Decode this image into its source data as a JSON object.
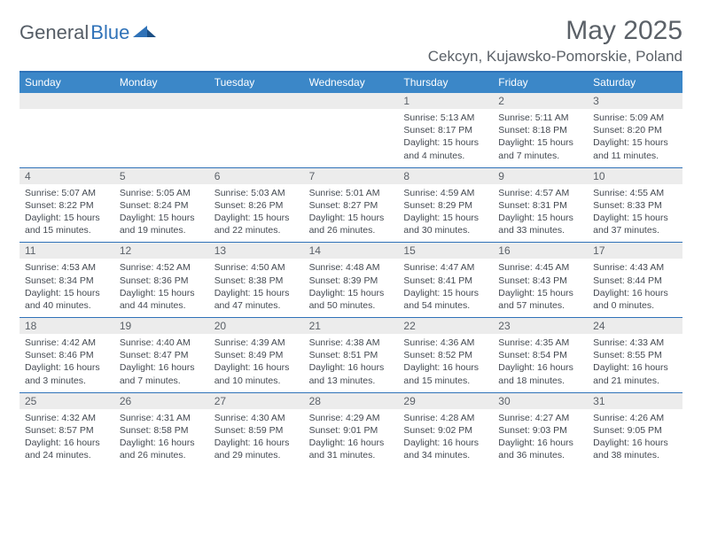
{
  "logo": {
    "text1": "General",
    "text2": "Blue"
  },
  "title": "May 2025",
  "location": "Cekcyn, Kujawsko-Pomorskie, Poland",
  "day_names": [
    "Sunday",
    "Monday",
    "Tuesday",
    "Wednesday",
    "Thursday",
    "Friday",
    "Saturday"
  ],
  "colors": {
    "header_bg": "#3b87c8",
    "border": "#2f72b8",
    "daynum_bg": "#ececec",
    "text_main": "#5b6168",
    "text_body": "#444a52"
  },
  "weeks": [
    [
      null,
      null,
      null,
      null,
      {
        "n": "1",
        "sr": "5:13 AM",
        "ss": "8:17 PM",
        "dl": "15 hours and 4 minutes."
      },
      {
        "n": "2",
        "sr": "5:11 AM",
        "ss": "8:18 PM",
        "dl": "15 hours and 7 minutes."
      },
      {
        "n": "3",
        "sr": "5:09 AM",
        "ss": "8:20 PM",
        "dl": "15 hours and 11 minutes."
      }
    ],
    [
      {
        "n": "4",
        "sr": "5:07 AM",
        "ss": "8:22 PM",
        "dl": "15 hours and 15 minutes."
      },
      {
        "n": "5",
        "sr": "5:05 AM",
        "ss": "8:24 PM",
        "dl": "15 hours and 19 minutes."
      },
      {
        "n": "6",
        "sr": "5:03 AM",
        "ss": "8:26 PM",
        "dl": "15 hours and 22 minutes."
      },
      {
        "n": "7",
        "sr": "5:01 AM",
        "ss": "8:27 PM",
        "dl": "15 hours and 26 minutes."
      },
      {
        "n": "8",
        "sr": "4:59 AM",
        "ss": "8:29 PM",
        "dl": "15 hours and 30 minutes."
      },
      {
        "n": "9",
        "sr": "4:57 AM",
        "ss": "8:31 PM",
        "dl": "15 hours and 33 minutes."
      },
      {
        "n": "10",
        "sr": "4:55 AM",
        "ss": "8:33 PM",
        "dl": "15 hours and 37 minutes."
      }
    ],
    [
      {
        "n": "11",
        "sr": "4:53 AM",
        "ss": "8:34 PM",
        "dl": "15 hours and 40 minutes."
      },
      {
        "n": "12",
        "sr": "4:52 AM",
        "ss": "8:36 PM",
        "dl": "15 hours and 44 minutes."
      },
      {
        "n": "13",
        "sr": "4:50 AM",
        "ss": "8:38 PM",
        "dl": "15 hours and 47 minutes."
      },
      {
        "n": "14",
        "sr": "4:48 AM",
        "ss": "8:39 PM",
        "dl": "15 hours and 50 minutes."
      },
      {
        "n": "15",
        "sr": "4:47 AM",
        "ss": "8:41 PM",
        "dl": "15 hours and 54 minutes."
      },
      {
        "n": "16",
        "sr": "4:45 AM",
        "ss": "8:43 PM",
        "dl": "15 hours and 57 minutes."
      },
      {
        "n": "17",
        "sr": "4:43 AM",
        "ss": "8:44 PM",
        "dl": "16 hours and 0 minutes."
      }
    ],
    [
      {
        "n": "18",
        "sr": "4:42 AM",
        "ss": "8:46 PM",
        "dl": "16 hours and 3 minutes."
      },
      {
        "n": "19",
        "sr": "4:40 AM",
        "ss": "8:47 PM",
        "dl": "16 hours and 7 minutes."
      },
      {
        "n": "20",
        "sr": "4:39 AM",
        "ss": "8:49 PM",
        "dl": "16 hours and 10 minutes."
      },
      {
        "n": "21",
        "sr": "4:38 AM",
        "ss": "8:51 PM",
        "dl": "16 hours and 13 minutes."
      },
      {
        "n": "22",
        "sr": "4:36 AM",
        "ss": "8:52 PM",
        "dl": "16 hours and 15 minutes."
      },
      {
        "n": "23",
        "sr": "4:35 AM",
        "ss": "8:54 PM",
        "dl": "16 hours and 18 minutes."
      },
      {
        "n": "24",
        "sr": "4:33 AM",
        "ss": "8:55 PM",
        "dl": "16 hours and 21 minutes."
      }
    ],
    [
      {
        "n": "25",
        "sr": "4:32 AM",
        "ss": "8:57 PM",
        "dl": "16 hours and 24 minutes."
      },
      {
        "n": "26",
        "sr": "4:31 AM",
        "ss": "8:58 PM",
        "dl": "16 hours and 26 minutes."
      },
      {
        "n": "27",
        "sr": "4:30 AM",
        "ss": "8:59 PM",
        "dl": "16 hours and 29 minutes."
      },
      {
        "n": "28",
        "sr": "4:29 AM",
        "ss": "9:01 PM",
        "dl": "16 hours and 31 minutes."
      },
      {
        "n": "29",
        "sr": "4:28 AM",
        "ss": "9:02 PM",
        "dl": "16 hours and 34 minutes."
      },
      {
        "n": "30",
        "sr": "4:27 AM",
        "ss": "9:03 PM",
        "dl": "16 hours and 36 minutes."
      },
      {
        "n": "31",
        "sr": "4:26 AM",
        "ss": "9:05 PM",
        "dl": "16 hours and 38 minutes."
      }
    ]
  ],
  "labels": {
    "sunrise": "Sunrise: ",
    "sunset": "Sunset: ",
    "daylight": "Daylight: "
  }
}
